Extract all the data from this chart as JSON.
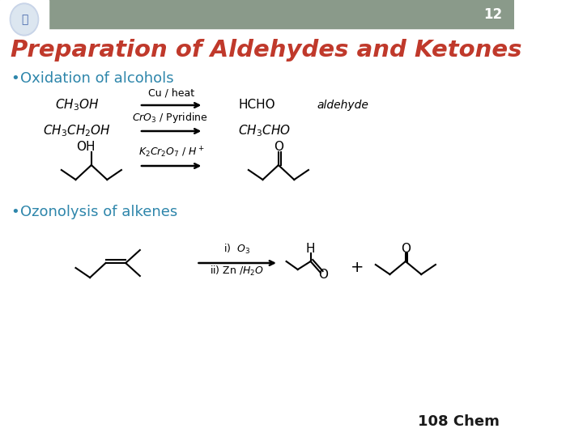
{
  "header_color": "#8a9a8a",
  "header_number": "12",
  "title": "Preparation of Aldehydes and Ketones",
  "title_color": "#c0392b",
  "bullet_color": "#2e86ab",
  "bullet1": "Oxidation of alcohols",
  "bullet2": "Ozonolysis of alkenes",
  "footer_text": "108 Chem",
  "footer_color": "#1a1a1a",
  "white_bg": "#ffffff"
}
